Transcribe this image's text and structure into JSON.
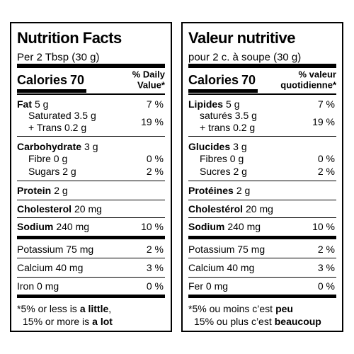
{
  "panels": [
    {
      "title": "Nutrition Facts",
      "serving": "Per 2 Tbsp (30 g)",
      "calories": {
        "label": "Calories",
        "value": "70"
      },
      "dv_header": [
        "% Daily",
        "Value*"
      ],
      "nutrients": [
        {
          "name": "Fat",
          "amount": "5 g",
          "dv": "7 %"
        },
        {
          "text": "Saturated 3.5 g",
          "dv": "19 %"
        },
        {
          "text": "+ Trans 0.2 g"
        },
        {
          "name": "Carbohydrate",
          "amount": "3 g"
        },
        {
          "text": "Fibre 0 g",
          "dv": "0 %"
        },
        {
          "text": "Sugars 2 g",
          "dv": "2 %"
        },
        {
          "name": "Protein",
          "amount": "2 g"
        },
        {
          "name": "Cholesterol",
          "amount": "20 mg"
        },
        {
          "name": "Sodium",
          "amount": "240 mg",
          "dv": "10 %"
        },
        {
          "text": "Potassium 75 mg",
          "dv": "2 %"
        },
        {
          "text": "Calcium 40 mg",
          "dv": "3 %"
        },
        {
          "text": "Iron 0 mg",
          "dv": "0 %"
        }
      ],
      "footnote": {
        "line1": "*5% or less is",
        "line1_bold": "a little",
        "line1_end": ",",
        "line2": "15% or more is",
        "line2_bold": "a lot"
      }
    },
    {
      "title": "Valeur nutritive",
      "serving": "pour 2 c. à soupe (30 g)",
      "calories": {
        "label": "Calories",
        "value": "70"
      },
      "dv_header": [
        "% valeur",
        "quotidienne*"
      ],
      "nutrients": [
        {
          "name": "Lipides",
          "amount": "5 g",
          "dv": "7 %"
        },
        {
          "text": "saturés 3.5 g",
          "dv": "19 %"
        },
        {
          "text": "+ trans 0.2 g"
        },
        {
          "name": "Glucides",
          "amount": "3 g"
        },
        {
          "text": "Fibres 0 g",
          "dv": "0 %"
        },
        {
          "text": "Sucres 2 g",
          "dv": "2 %"
        },
        {
          "name": "Protéines",
          "amount": "2 g"
        },
        {
          "name": "Cholestérol",
          "amount": "20 mg"
        },
        {
          "name": "Sodium",
          "amount": "240 mg",
          "dv": "10 %"
        },
        {
          "text": "Potassium 75 mg",
          "dv": "2 %"
        },
        {
          "text": "Calcium 40 mg",
          "dv": "3 %"
        },
        {
          "text": "Fer 0 mg",
          "dv": "0 %"
        }
      ],
      "footnote": {
        "line1": "*5% ou moins c’est",
        "line1_bold": "peu",
        "line2": "15% ou plus c’est",
        "line2_bold": "beaucoup"
      }
    }
  ]
}
